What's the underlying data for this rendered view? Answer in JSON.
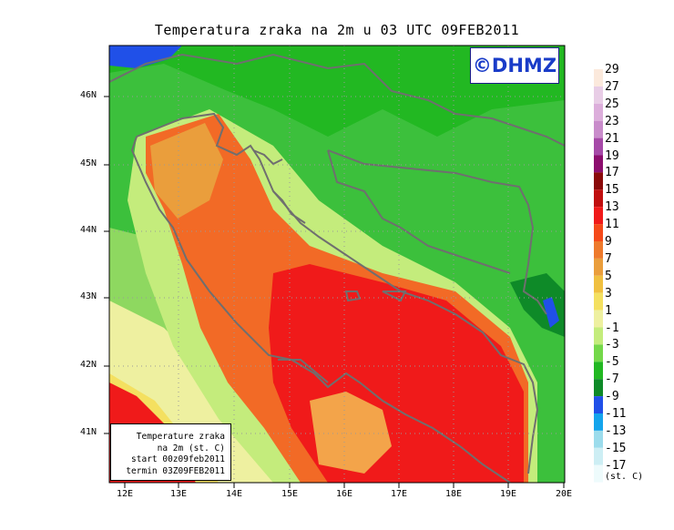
{
  "title": "Temperatura zraka na 2m u 03 UTC 09FEB2011",
  "logo": "©DHMZ",
  "info_box": {
    "line1": "Temperature zraka",
    "line2": "na 2m (st. C)",
    "line3": "start 00z09feb2011",
    "line4": "termin 03Z09FEB2011"
  },
  "lat_labels": [
    "46N",
    "45N",
    "44N",
    "43N",
    "42N",
    "41N"
  ],
  "lon_labels": [
    "12E",
    "13E",
    "14E",
    "15E",
    "16E",
    "17E",
    "18E",
    "19E",
    "20E"
  ],
  "colorbar": {
    "labels": [
      "29",
      "27",
      "25",
      "23",
      "21",
      "19",
      "17",
      "15",
      "13",
      "11",
      "9",
      "7",
      "5",
      "3",
      "1",
      "-1",
      "-3",
      "-5",
      "-7",
      "-9",
      "-11",
      "-13",
      "-15",
      "-17"
    ],
    "unit": "(st. C)",
    "colors": [
      "#fbe9dc",
      "#e8cde6",
      "#dcaedb",
      "#c98ccb",
      "#a64aa8",
      "#8c0e6e",
      "#8a0a0a",
      "#c00f0f",
      "#f01a1a",
      "#f54a1a",
      "#ee7a2c",
      "#ea9e3c",
      "#f0c040",
      "#f4e060",
      "#eef0a0",
      "#c4ec7c",
      "#74d84a",
      "#22b822",
      "#0e8a28",
      "#2050e8",
      "#14a4ec",
      "#9cdcec",
      "#cdeef4",
      "#eefbfc"
    ]
  },
  "colors": {
    "land_green": "#3cc03c",
    "sea_red": "#f01a1a",
    "sea_orange": "#f26a26",
    "coast_line": "#6f6f6f"
  }
}
